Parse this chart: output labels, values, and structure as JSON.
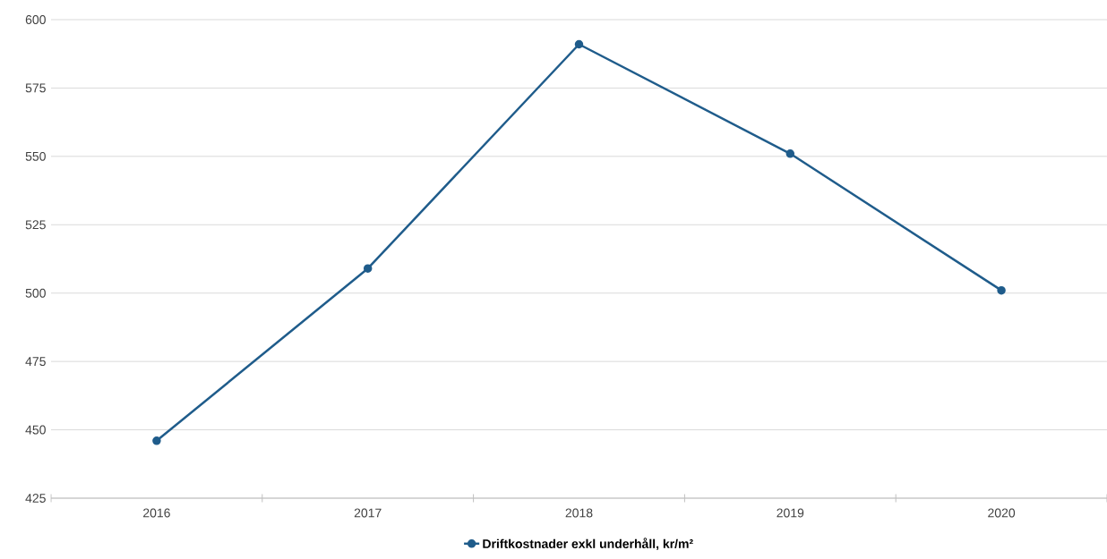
{
  "chart_data": {
    "type": "line",
    "categories": [
      "2016",
      "2017",
      "2018",
      "2019",
      "2020"
    ],
    "series": [
      {
        "name": "Driftkostnader exkl underhåll, kr/m²",
        "color": "#1f5c8b",
        "values": [
          446,
          509,
          591,
          551,
          501
        ]
      }
    ],
    "ylim": [
      425,
      600
    ],
    "yticks": [
      425,
      450,
      475,
      500,
      525,
      550,
      575,
      600
    ],
    "grid": "y",
    "legend": "bottom",
    "marker": "circle",
    "line_style": "solid"
  }
}
